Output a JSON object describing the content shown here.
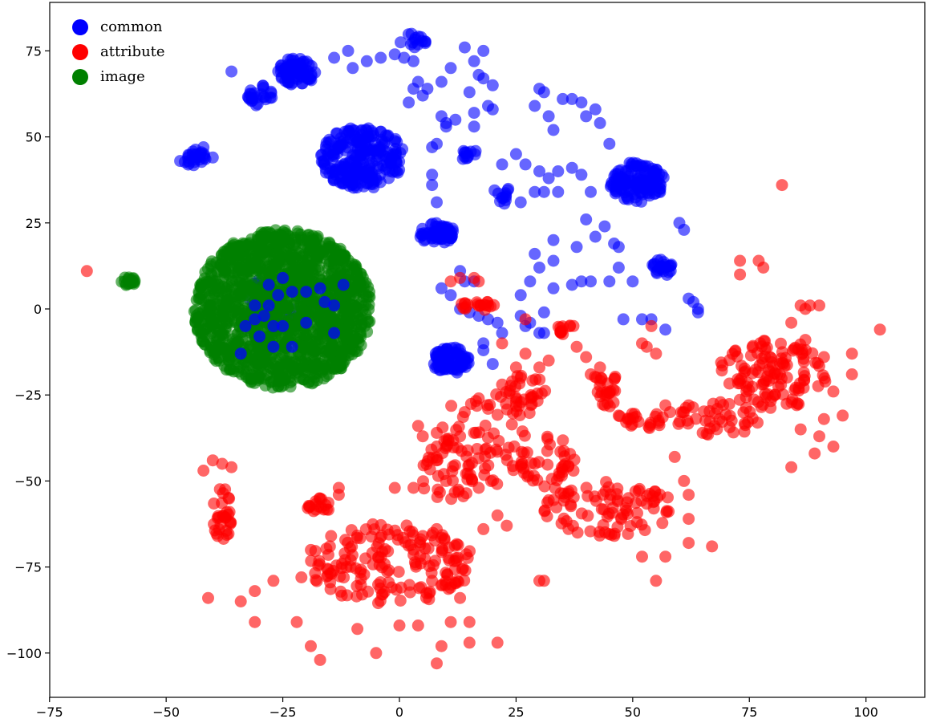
{
  "chart_data": {
    "type": "scatter",
    "title": "",
    "xlabel": "",
    "ylabel": "",
    "xlim": [
      -75,
      112
    ],
    "ylim": [
      -112,
      89
    ],
    "xticks": [
      -75,
      -50,
      -25,
      0,
      25,
      50,
      75,
      100
    ],
    "yticks": [
      -100,
      -75,
      -50,
      -25,
      0,
      25,
      50,
      75
    ],
    "xtick_labels": [
      "−75",
      "−50",
      "−25",
      "0",
      "25",
      "50",
      "75",
      "100"
    ],
    "ytick_labels": [
      "−100",
      "−75",
      "−50",
      "−25",
      "0",
      "25",
      "50",
      "75"
    ],
    "grid": false,
    "legend_position": "top-left",
    "series": [
      {
        "name": "common",
        "color": "#0000ff",
        "clusters": [
          {
            "cx": -8,
            "cy": 44,
            "rx": 9,
            "ry": 9,
            "n": 240
          },
          {
            "cx": -22,
            "cy": 69,
            "rx": 4,
            "ry": 4,
            "n": 70
          },
          {
            "cx": 51,
            "cy": 37,
            "rx": 6,
            "ry": 6,
            "n": 120
          },
          {
            "cx": -44,
            "cy": 44,
            "rx": 2.5,
            "ry": 2.5,
            "n": 25
          },
          {
            "cx": -30,
            "cy": 62,
            "rx": 3,
            "ry": 3,
            "n": 25
          },
          {
            "cx": 11,
            "cy": -15,
            "rx": 4,
            "ry": 4,
            "n": 80
          },
          {
            "cx": 8,
            "cy": 22,
            "rx": 4,
            "ry": 3,
            "n": 60
          },
          {
            "cx": 56,
            "cy": 12,
            "rx": 2.5,
            "ry": 2.5,
            "n": 25
          },
          {
            "cx": 3,
            "cy": 78,
            "rx": 3,
            "ry": 2,
            "n": 15
          },
          {
            "cx": 15,
            "cy": 45,
            "rx": 2,
            "ry": 2,
            "n": 12
          },
          {
            "cx": 22,
            "cy": 33,
            "rx": 2,
            "ry": 3,
            "n": 12
          },
          {
            "cx": -26,
            "cy": 2,
            "rx": 8,
            "ry": 8,
            "n": 28
          }
        ],
        "points": [
          [
            -14,
            73
          ],
          [
            -7,
            72
          ],
          [
            -4,
            73
          ],
          [
            -1,
            74
          ],
          [
            3,
            72
          ],
          [
            6,
            64
          ],
          [
            9,
            66
          ],
          [
            11,
            70
          ],
          [
            14,
            76
          ],
          [
            16,
            72
          ],
          [
            18,
            67
          ],
          [
            20,
            65
          ],
          [
            3,
            64
          ],
          [
            2,
            60
          ],
          [
            5,
            62
          ],
          [
            10,
            54
          ],
          [
            12,
            55
          ],
          [
            16,
            53
          ],
          [
            16,
            57
          ],
          [
            22,
            42
          ],
          [
            25,
            45
          ],
          [
            27,
            42
          ],
          [
            30,
            40
          ],
          [
            32,
            38
          ],
          [
            34,
            40
          ],
          [
            37,
            41
          ],
          [
            39,
            39
          ],
          [
            41,
            34
          ],
          [
            34,
            34
          ],
          [
            29,
            34
          ],
          [
            31,
            34
          ],
          [
            26,
            31
          ],
          [
            29,
            59
          ],
          [
            30,
            64
          ],
          [
            31,
            63
          ],
          [
            32,
            56
          ],
          [
            33,
            52
          ],
          [
            35,
            61
          ],
          [
            37,
            61
          ],
          [
            39,
            60
          ],
          [
            40,
            56
          ],
          [
            42,
            58
          ],
          [
            43,
            54
          ],
          [
            45,
            48
          ],
          [
            42,
            21
          ],
          [
            44,
            24
          ],
          [
            46,
            19
          ],
          [
            47,
            18
          ],
          [
            47,
            12
          ],
          [
            40,
            26
          ],
          [
            38,
            18
          ],
          [
            37,
            7
          ],
          [
            39,
            8
          ],
          [
            41,
            8
          ],
          [
            45,
            8
          ],
          [
            50,
            8
          ],
          [
            48,
            -3
          ],
          [
            52,
            -3
          ],
          [
            54,
            -3
          ],
          [
            57,
            -6
          ],
          [
            62,
            3
          ],
          [
            63,
            2
          ],
          [
            64,
            -1
          ],
          [
            64,
            0
          ],
          [
            60,
            25
          ],
          [
            61,
            23
          ],
          [
            26,
            4
          ],
          [
            28,
            8
          ],
          [
            29,
            16
          ],
          [
            30,
            12
          ],
          [
            33,
            14
          ],
          [
            33,
            6
          ],
          [
            31,
            -1
          ],
          [
            33,
            20
          ],
          [
            27,
            -5
          ],
          [
            30,
            -7
          ],
          [
            7,
            47
          ],
          [
            8,
            48
          ],
          [
            9,
            56
          ],
          [
            10,
            53
          ],
          [
            7,
            39
          ],
          [
            7,
            36
          ],
          [
            8,
            31
          ],
          [
            13,
            11
          ],
          [
            14,
            8
          ],
          [
            16,
            8
          ],
          [
            9,
            6
          ],
          [
            11,
            4
          ],
          [
            13,
            0
          ],
          [
            15,
            -1
          ],
          [
            17,
            -2
          ],
          [
            19,
            -3
          ],
          [
            21,
            -4
          ],
          [
            22,
            -7
          ],
          [
            18,
            -12
          ],
          [
            20,
            -16
          ],
          [
            18,
            -10
          ],
          [
            26,
            -2
          ],
          [
            28,
            -4
          ],
          [
            31,
            -7
          ],
          [
            15,
            63
          ],
          [
            17,
            68
          ],
          [
            19,
            59
          ],
          [
            20,
            58
          ],
          [
            18,
            75
          ],
          [
            4,
            66
          ],
          [
            1,
            73
          ],
          [
            -11,
            75
          ],
          [
            -10,
            70
          ],
          [
            -36,
            69
          ],
          [
            -47,
            43
          ],
          [
            -42,
            47
          ],
          [
            -40,
            44
          ]
        ]
      },
      {
        "name": "attribute",
        "color": "#ff0000",
        "clusters": [
          {
            "cx": 80,
            "cy": -19,
            "rx": 12,
            "ry": 10,
            "n": 120
          },
          {
            "cx": -2,
            "cy": -74,
            "rx": 18,
            "ry": 12,
            "n": 170
          },
          {
            "cx": 45,
            "cy": -58,
            "rx": 14,
            "ry": 8,
            "n": 90
          },
          {
            "cx": 18,
            "cy": -38,
            "rx": 10,
            "ry": 14,
            "n": 60
          },
          {
            "cx": 68,
            "cy": -32,
            "rx": 9,
            "ry": 5,
            "n": 40
          },
          {
            "cx": 32,
            "cy": -45,
            "rx": 6,
            "ry": 8,
            "n": 40
          },
          {
            "cx": 44,
            "cy": -23,
            "rx": 3,
            "ry": 6,
            "n": 25
          },
          {
            "cx": 52,
            "cy": -32,
            "rx": 5,
            "ry": 3,
            "n": 22
          },
          {
            "cx": 10,
            "cy": -47,
            "rx": 6,
            "ry": 10,
            "n": 40
          },
          {
            "cx": 27,
            "cy": -25,
            "rx": 5,
            "ry": 6,
            "n": 30
          },
          {
            "cx": -38,
            "cy": -60,
            "rx": 2,
            "ry": 8,
            "n": 30
          },
          {
            "cx": -17,
            "cy": -57,
            "rx": 3,
            "ry": 2,
            "n": 18
          },
          {
            "cx": 36,
            "cy": -6,
            "rx": 2.5,
            "ry": 1.5,
            "n": 12
          },
          {
            "cx": 17,
            "cy": 1,
            "rx": 5,
            "ry": 1.5,
            "n": 20
          }
        ],
        "points": [
          [
            -67,
            11
          ],
          [
            -41,
            -84
          ],
          [
            -42,
            -47
          ],
          [
            -40,
            -44
          ],
          [
            -38,
            -45
          ],
          [
            -36,
            -46
          ],
          [
            30,
            -79
          ],
          [
            31,
            -79
          ],
          [
            82,
            36
          ],
          [
            73,
            14
          ],
          [
            77,
            14
          ],
          [
            78,
            12
          ],
          [
            73,
            10
          ],
          [
            84,
            -4
          ],
          [
            87,
            0
          ],
          [
            88,
            1
          ],
          [
            86,
            1
          ],
          [
            90,
            1
          ],
          [
            103,
            -6
          ],
          [
            97,
            -13
          ],
          [
            97,
            -19
          ],
          [
            93,
            -40
          ],
          [
            89,
            -42
          ],
          [
            86,
            -35
          ],
          [
            84,
            -46
          ],
          [
            95,
            -31
          ],
          [
            93,
            -24
          ],
          [
            91,
            -32
          ],
          [
            90,
            -37
          ],
          [
            91,
            -14
          ],
          [
            87,
            -9
          ],
          [
            54,
            -5
          ],
          [
            52,
            -10
          ],
          [
            53,
            -11
          ],
          [
            55,
            -13
          ],
          [
            11,
            8
          ],
          [
            13,
            9
          ],
          [
            16,
            9
          ],
          [
            17,
            8
          ],
          [
            27,
            -3
          ],
          [
            22,
            -10
          ],
          [
            67,
            -69
          ],
          [
            62,
            -68
          ],
          [
            55,
            -79
          ],
          [
            57,
            -72
          ],
          [
            62,
            -61
          ],
          [
            52,
            -72
          ],
          [
            8,
            -103
          ],
          [
            -5,
            -100
          ],
          [
            -19,
            -98
          ],
          [
            -17,
            -102
          ],
          [
            -22,
            -91
          ],
          [
            -31,
            -91
          ],
          [
            -34,
            -85
          ],
          [
            -31,
            -82
          ],
          [
            -27,
            -79
          ],
          [
            -21,
            -78
          ],
          [
            9,
            -98
          ],
          [
            4,
            -92
          ],
          [
            0,
            -92
          ],
          [
            15,
            -97
          ],
          [
            21,
            -97
          ],
          [
            11,
            -91
          ],
          [
            15,
            -91
          ],
          [
            13,
            -84
          ],
          [
            7,
            -79
          ],
          [
            -8,
            -83
          ],
          [
            -9,
            -93
          ],
          [
            3,
            -70
          ],
          [
            5,
            -66
          ],
          [
            8,
            -64
          ],
          [
            17,
            -52
          ],
          [
            18,
            -64
          ],
          [
            21,
            -60
          ],
          [
            23,
            -63
          ],
          [
            3,
            -52
          ],
          [
            -1,
            -52
          ],
          [
            -13,
            -52
          ],
          [
            -13,
            -54
          ],
          [
            4,
            -34
          ],
          [
            5,
            -37
          ],
          [
            8,
            -36
          ],
          [
            8,
            -40
          ],
          [
            8,
            -44
          ],
          [
            10,
            -50
          ],
          [
            13,
            -37
          ],
          [
            16,
            -36
          ],
          [
            14,
            -30
          ],
          [
            17,
            -26
          ],
          [
            19,
            -29
          ],
          [
            22,
            -22
          ],
          [
            25,
            -17
          ],
          [
            27,
            -13
          ],
          [
            26,
            -20
          ],
          [
            30,
            -17
          ],
          [
            32,
            -15
          ],
          [
            41,
            -19
          ],
          [
            43,
            -17
          ],
          [
            44,
            -28
          ],
          [
            47,
            -31
          ],
          [
            57,
            -28
          ],
          [
            58,
            -30
          ],
          [
            61,
            -30
          ],
          [
            65,
            -36
          ],
          [
            62,
            -28
          ],
          [
            59,
            -43
          ],
          [
            62,
            -54
          ],
          [
            61,
            -50
          ],
          [
            38,
            -11
          ],
          [
            40,
            -14
          ]
        ]
      },
      {
        "name": "image",
        "color": "#008000",
        "clusters": [
          {
            "cx": -25,
            "cy": 0,
            "rx": 19,
            "ry": 23,
            "n": 1500
          },
          {
            "cx": -58,
            "cy": 8,
            "rx": 1.6,
            "ry": 1.3,
            "n": 20
          }
        ],
        "points": []
      }
    ],
    "overlay_points": [
      [
        -12,
        7
      ],
      [
        -17,
        6
      ],
      [
        -20,
        5
      ],
      [
        -23,
        5
      ],
      [
        -25,
        9
      ],
      [
        -26,
        4
      ],
      [
        -28,
        7
      ],
      [
        -28,
        1
      ],
      [
        -29,
        -2
      ],
      [
        -31,
        -3
      ],
      [
        -31,
        1
      ],
      [
        -27,
        -5
      ],
      [
        -25,
        -5
      ],
      [
        -30,
        -8
      ],
      [
        -27,
        -11
      ],
      [
        -23,
        -11
      ],
      [
        -20,
        -4
      ],
      [
        -16,
        2
      ],
      [
        -14,
        1
      ],
      [
        -14,
        -7
      ],
      [
        -34,
        -13
      ],
      [
        -33,
        -5
      ]
    ]
  }
}
